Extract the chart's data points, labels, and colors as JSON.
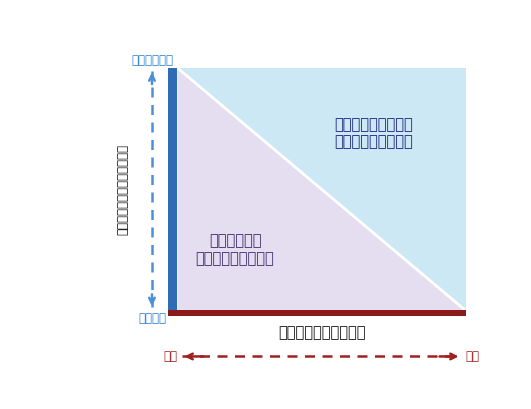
{
  "y_label_vertical": "プログラムの実行される起点",
  "y_top_label": "イベント実行",
  "y_bottom_label": "定期実行",
  "x_label": "プログラムの実行間隔",
  "x_left_label": "長い",
  "x_right_label": "短い",
  "realtime_text": "リアルタイム処理と\n言われる傾向が強い",
  "batch_text": "バッチ処理と\n言われる傾向が強い",
  "realtime_color": "#cce8f4",
  "batch_color": "#e5ddf0",
  "left_bar_color": "#2e6db4",
  "bottom_bar_color": "#8b1a1a",
  "dashed_arrow_color_y": "#4a90d9",
  "dashed_arrow_color_x": "#a02020",
  "realtime_text_color": "#1a237e",
  "batch_text_color": "#3d2b6e",
  "axis_label_color": "#111111",
  "side_label_color": "#2b7fcc",
  "fig_bg": "#ffffff",
  "figsize": [
    5.31,
    4.09
  ],
  "dpi": 100
}
